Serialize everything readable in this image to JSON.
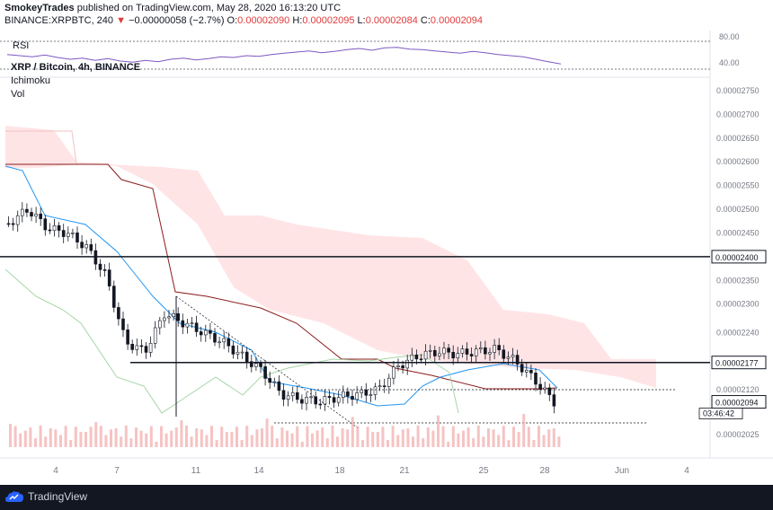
{
  "header": {
    "author": "SmokeyTrades",
    "published": "published on TradingView.com, May 28, 2020 16:13:20 UTC",
    "symbol": "BINANCE:XRPBTC, 240",
    "change_prefix": " ",
    "change_arrow": "▼",
    "change": "−0.00000058 (−2.7%)",
    "o_label": "O:",
    "o_value": "0.00002090",
    "h_label": "H:",
    "h_value": "0.00002095",
    "l_label": "L:",
    "l_value": "0.00002084",
    "c_label": "C:",
    "c_value": "0.00002094"
  },
  "legend": {
    "title": "XRP / Bitcoin, 4h, BINANCE",
    "ind1": "Ichimoku",
    "ind2": "Vol"
  },
  "rsi": {
    "label": "RSI",
    "ticks": [
      "80.00",
      "40.00"
    ]
  },
  "footer": {
    "brand": "TradingView"
  },
  "colors": {
    "price_up": "#131722",
    "conversion": "#2196f3",
    "base": "#8b1c1c",
    "lagging": "#a5d6a7",
    "cloud": "#ffcdd2",
    "leading_b": "#f8b4b4",
    "rsi": "#7e57c2",
    "volume": "#f2a9a9"
  },
  "chart_data": {
    "type": "line",
    "title": "XRP / Bitcoin, 4h, BINANCE",
    "x_ticks": [
      "4",
      "7",
      "11",
      "14",
      "18",
      "21",
      "25",
      "28",
      "Jun",
      "4"
    ],
    "y_ticks": [
      "0.00002750",
      "0.00002700",
      "0.00002650",
      "0.00002600",
      "0.00002550",
      "0.00002500",
      "0.00002450",
      "0.00002400",
      "0.00002350",
      "0.00002300",
      "0.00002240",
      "0.00002177",
      "0.00002120",
      "0.00002094",
      "0.00002025"
    ],
    "price_labels": [
      {
        "label": "0.00002400",
        "value": 2.4e-05
      },
      {
        "label": "0.00002177",
        "value": 2.177e-05
      },
      {
        "label": "0.00002094",
        "value": 2.094e-05
      }
    ],
    "countdown": "03:46:42",
    "series": [
      {
        "name": "XRP / Bitcoin",
        "x": [
          1,
          2,
          3,
          4,
          5,
          6,
          7,
          8,
          9,
          10,
          11,
          12,
          13,
          14,
          15,
          16,
          17,
          18,
          19,
          20,
          21,
          22,
          23,
          24,
          25,
          26,
          27,
          28,
          29
        ],
        "values": [
          2.47e-05,
          2.5e-05,
          2.46e-05,
          2.45e-05,
          2.42e-05,
          2.36e-05,
          2.22e-05,
          2.2e-05,
          2.28e-05,
          2.26e-05,
          2.24e-05,
          2.22e-05,
          2.19e-05,
          2.16e-05,
          2.11e-05,
          2.1e-05,
          2.095e-05,
          2.105e-05,
          2.11e-05,
          2.12e-05,
          2.17e-05,
          2.19e-05,
          2.2e-05,
          2.195e-05,
          2.2e-05,
          2.205e-05,
          2.18e-05,
          2.14e-05,
          2.094e-05
        ]
      }
    ],
    "rsi_levels": [
      80,
      40
    ]
  }
}
